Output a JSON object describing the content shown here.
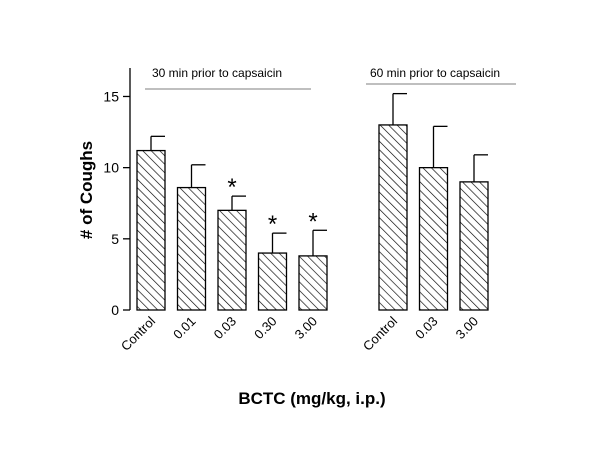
{
  "chart_data": {
    "type": "bar",
    "xlabel": "BCTC (mg/kg, i.p.)",
    "ylabel": "# of Coughs",
    "ylim": [
      0,
      17
    ],
    "yticks": [
      0,
      5,
      10,
      15
    ],
    "grid": false,
    "legend": "none",
    "bar_fill": "diagonal-hatch",
    "colors": {
      "bar_stroke": "#000000",
      "group_line": "#999999"
    },
    "groups": [
      {
        "label": "30 min prior to capsaicin",
        "bars": [
          {
            "category": "Control",
            "value": 11.2,
            "error": 1.0,
            "significant": false
          },
          {
            "category": "0.01",
            "value": 8.6,
            "error": 1.6,
            "significant": false
          },
          {
            "category": "0.03",
            "value": 7.0,
            "error": 1.0,
            "significant": true
          },
          {
            "category": "0.30",
            "value": 4.0,
            "error": 1.4,
            "significant": true
          },
          {
            "category": "3.00",
            "value": 3.8,
            "error": 1.8,
            "significant": true
          }
        ]
      },
      {
        "label": "60 min prior to capsaicin",
        "bars": [
          {
            "category": "Control",
            "value": 13.0,
            "error": 2.2,
            "significant": false
          },
          {
            "category": "0.03",
            "value": 10.0,
            "error": 2.9,
            "significant": false
          },
          {
            "category": "3.00",
            "value": 9.0,
            "error": 1.9,
            "significant": false
          }
        ]
      }
    ],
    "significance_marker": "*"
  }
}
